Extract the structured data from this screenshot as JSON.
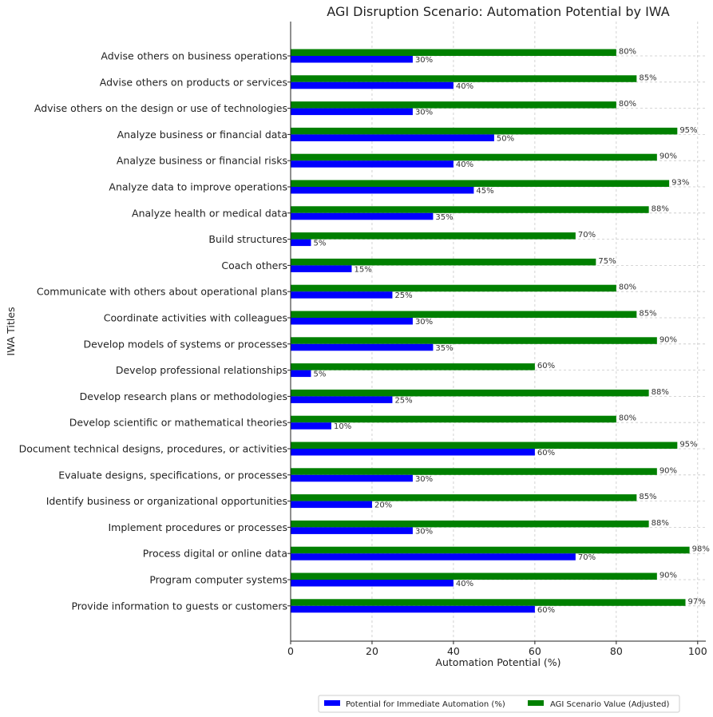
{
  "chart_data": {
    "type": "bar",
    "orientation": "horizontal",
    "title": "AGI Disruption Scenario: Automation Potential by IWA",
    "xlabel": "Automation Potential (%)",
    "ylabel": "IWA Titles",
    "xlim": [
      0,
      102
    ],
    "xticks": [
      0,
      20,
      40,
      60,
      80,
      100
    ],
    "grid": true,
    "legend_position": "bottom-right",
    "categories": [
      "Advise others on business operations",
      "Advise others on products or services",
      "Advise others on the design or use of technologies",
      "Analyze business or financial data",
      "Analyze business or financial risks",
      "Analyze data to improve operations",
      "Analyze health or medical data",
      "Build structures",
      "Coach others",
      "Communicate with others about operational plans",
      "Coordinate activities with colleagues",
      "Develop models of systems or processes",
      "Develop professional relationships",
      "Develop research plans or methodologies",
      "Develop scientific or mathematical theories",
      "Document technical designs, procedures, or activities",
      "Evaluate designs, specifications, or processes",
      "Identify business or organizational opportunities",
      "Implement procedures or processes",
      "Process digital or online data",
      "Program computer systems",
      "Provide information to guests or customers"
    ],
    "series": [
      {
        "name": "Potential for Immediate Automation (%)",
        "color": "#0000ff",
        "values": [
          30,
          40,
          30,
          50,
          40,
          45,
          35,
          5,
          15,
          25,
          30,
          35,
          5,
          25,
          10,
          60,
          30,
          20,
          30,
          70,
          40,
          60
        ]
      },
      {
        "name": "AGI Scenario Value (Adjusted)",
        "color": "#008000",
        "values": [
          80,
          85,
          80,
          95,
          90,
          93,
          88,
          70,
          75,
          80,
          85,
          90,
          60,
          88,
          80,
          95,
          90,
          85,
          88,
          98,
          90,
          97
        ]
      }
    ]
  }
}
